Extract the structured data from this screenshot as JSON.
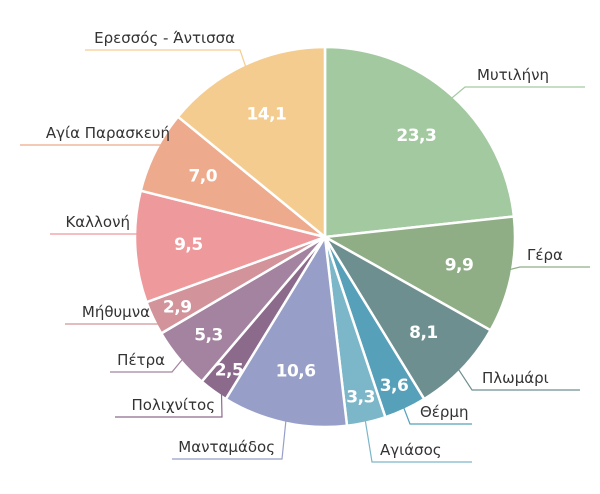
{
  "chart_data": {
    "type": "pie",
    "start": "top",
    "direction": "clockwise",
    "slices": [
      {
        "label": "Μυτιλήνη",
        "value": 23.3,
        "display": "23,3",
        "color": "#a3c9a0"
      },
      {
        "label": "Γέρα",
        "value": 9.9,
        "display": "9,9",
        "color": "#8fae86"
      },
      {
        "label": "Πλωμάρι",
        "value": 8.1,
        "display": "8,1",
        "color": "#6e8f8f"
      },
      {
        "label": "Θέρμη",
        "value": 3.6,
        "display": "3,6",
        "color": "#56a0b9"
      },
      {
        "label": "Αγιάσος",
        "value": 3.3,
        "display": "3,3",
        "color": "#7cb6c9"
      },
      {
        "label": "Μανταμάδος",
        "value": 10.6,
        "display": "10,6",
        "color": "#979fc8"
      },
      {
        "label": "Πολιχνίτος",
        "value": 2.5,
        "display": "2,5",
        "color": "#8c6a8c"
      },
      {
        "label": "Πέτρα",
        "value": 5.3,
        "display": "5,3",
        "color": "#a3839f"
      },
      {
        "label": "Μήθυμνα",
        "value": 2.9,
        "display": "2,9",
        "color": "#d2939b"
      },
      {
        "label": "Καλλονή",
        "value": 9.5,
        "display": "9,5",
        "color": "#ee999c"
      },
      {
        "label": "Αγία Παρασκευή",
        "value": 7.0,
        "display": "7,0",
        "color": "#eeaa8c"
      },
      {
        "label": "Ερεσσός - Άντισσα",
        "value": 14.1,
        "display": "14,1",
        "color": "#f5cc90"
      }
    ]
  }
}
